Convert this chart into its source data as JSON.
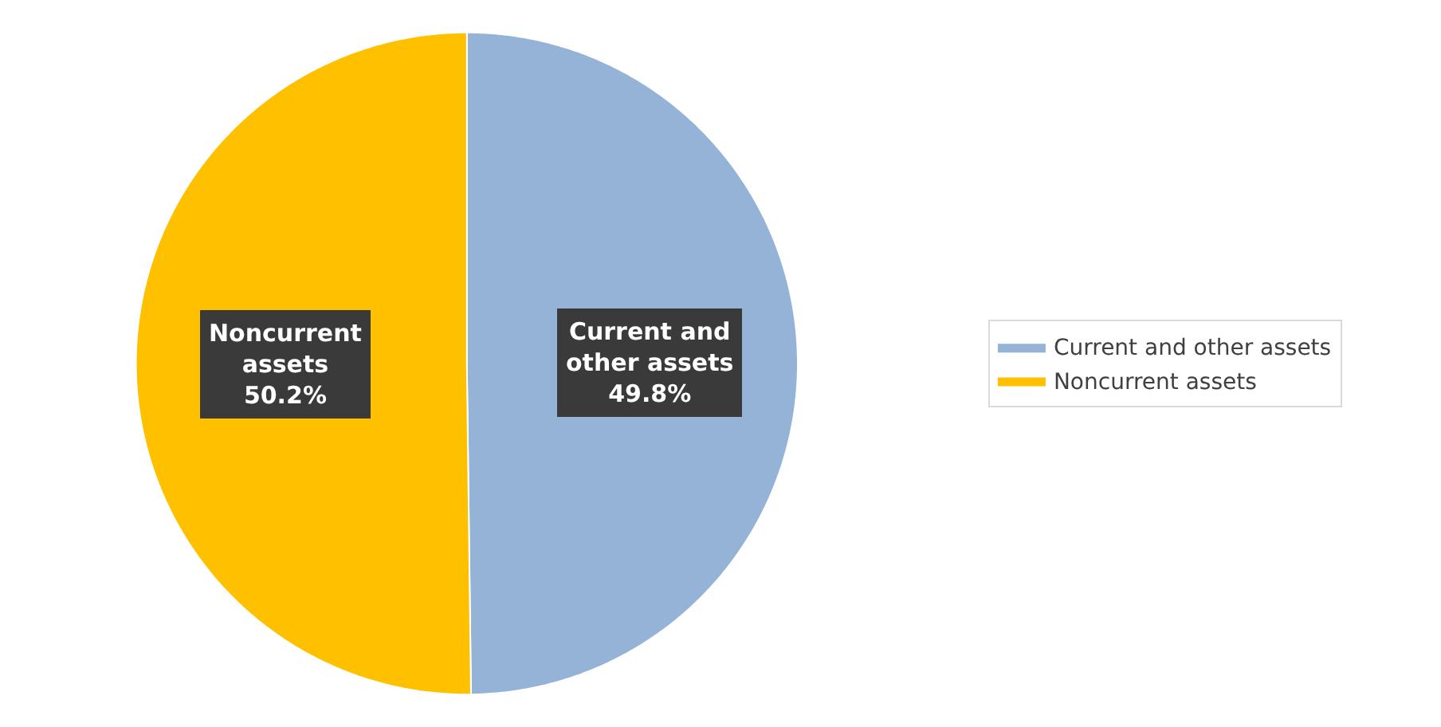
{
  "chart_data": {
    "type": "pie",
    "categories": [
      "Current and other assets",
      "Noncurrent assets"
    ],
    "values": [
      49.8,
      50.2
    ],
    "colors": [
      "#95b3d7",
      "#ffc000"
    ],
    "value_labels": [
      "49.8%",
      "50.2%"
    ],
    "legend": "right"
  }
}
